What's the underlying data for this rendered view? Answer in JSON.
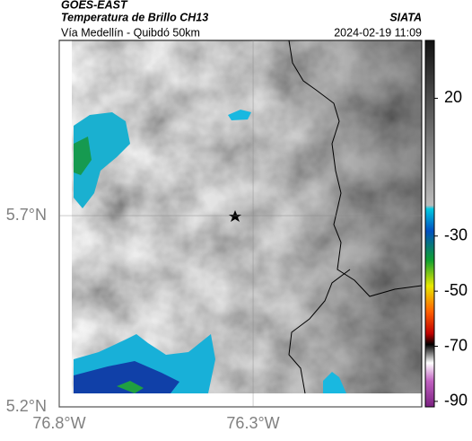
{
  "header": {
    "source": "GOES-EAST",
    "title": "Temperatura de Brillo CH13",
    "subtitle": "Vía Medellín - Quibdó 50km",
    "brand": "SIATA",
    "datetime": "2024-02-19 11:09"
  },
  "map": {
    "xlim": [
      -76.8,
      -75.865
    ],
    "ylim": [
      5.2,
      6.158
    ],
    "xticks": [
      {
        "value": -76.8,
        "label": "76.8°W"
      },
      {
        "value": -76.3,
        "label": "76.3°W"
      }
    ],
    "yticks": [
      {
        "value": 5.2,
        "label": "5.2°N"
      },
      {
        "value": 5.7,
        "label": "5.7°N"
      }
    ]
  },
  "colorbar": {
    "lim": [
      -92,
      41
    ],
    "ticks": [
      20,
      -30,
      -50,
      -70,
      -90
    ]
  }
}
